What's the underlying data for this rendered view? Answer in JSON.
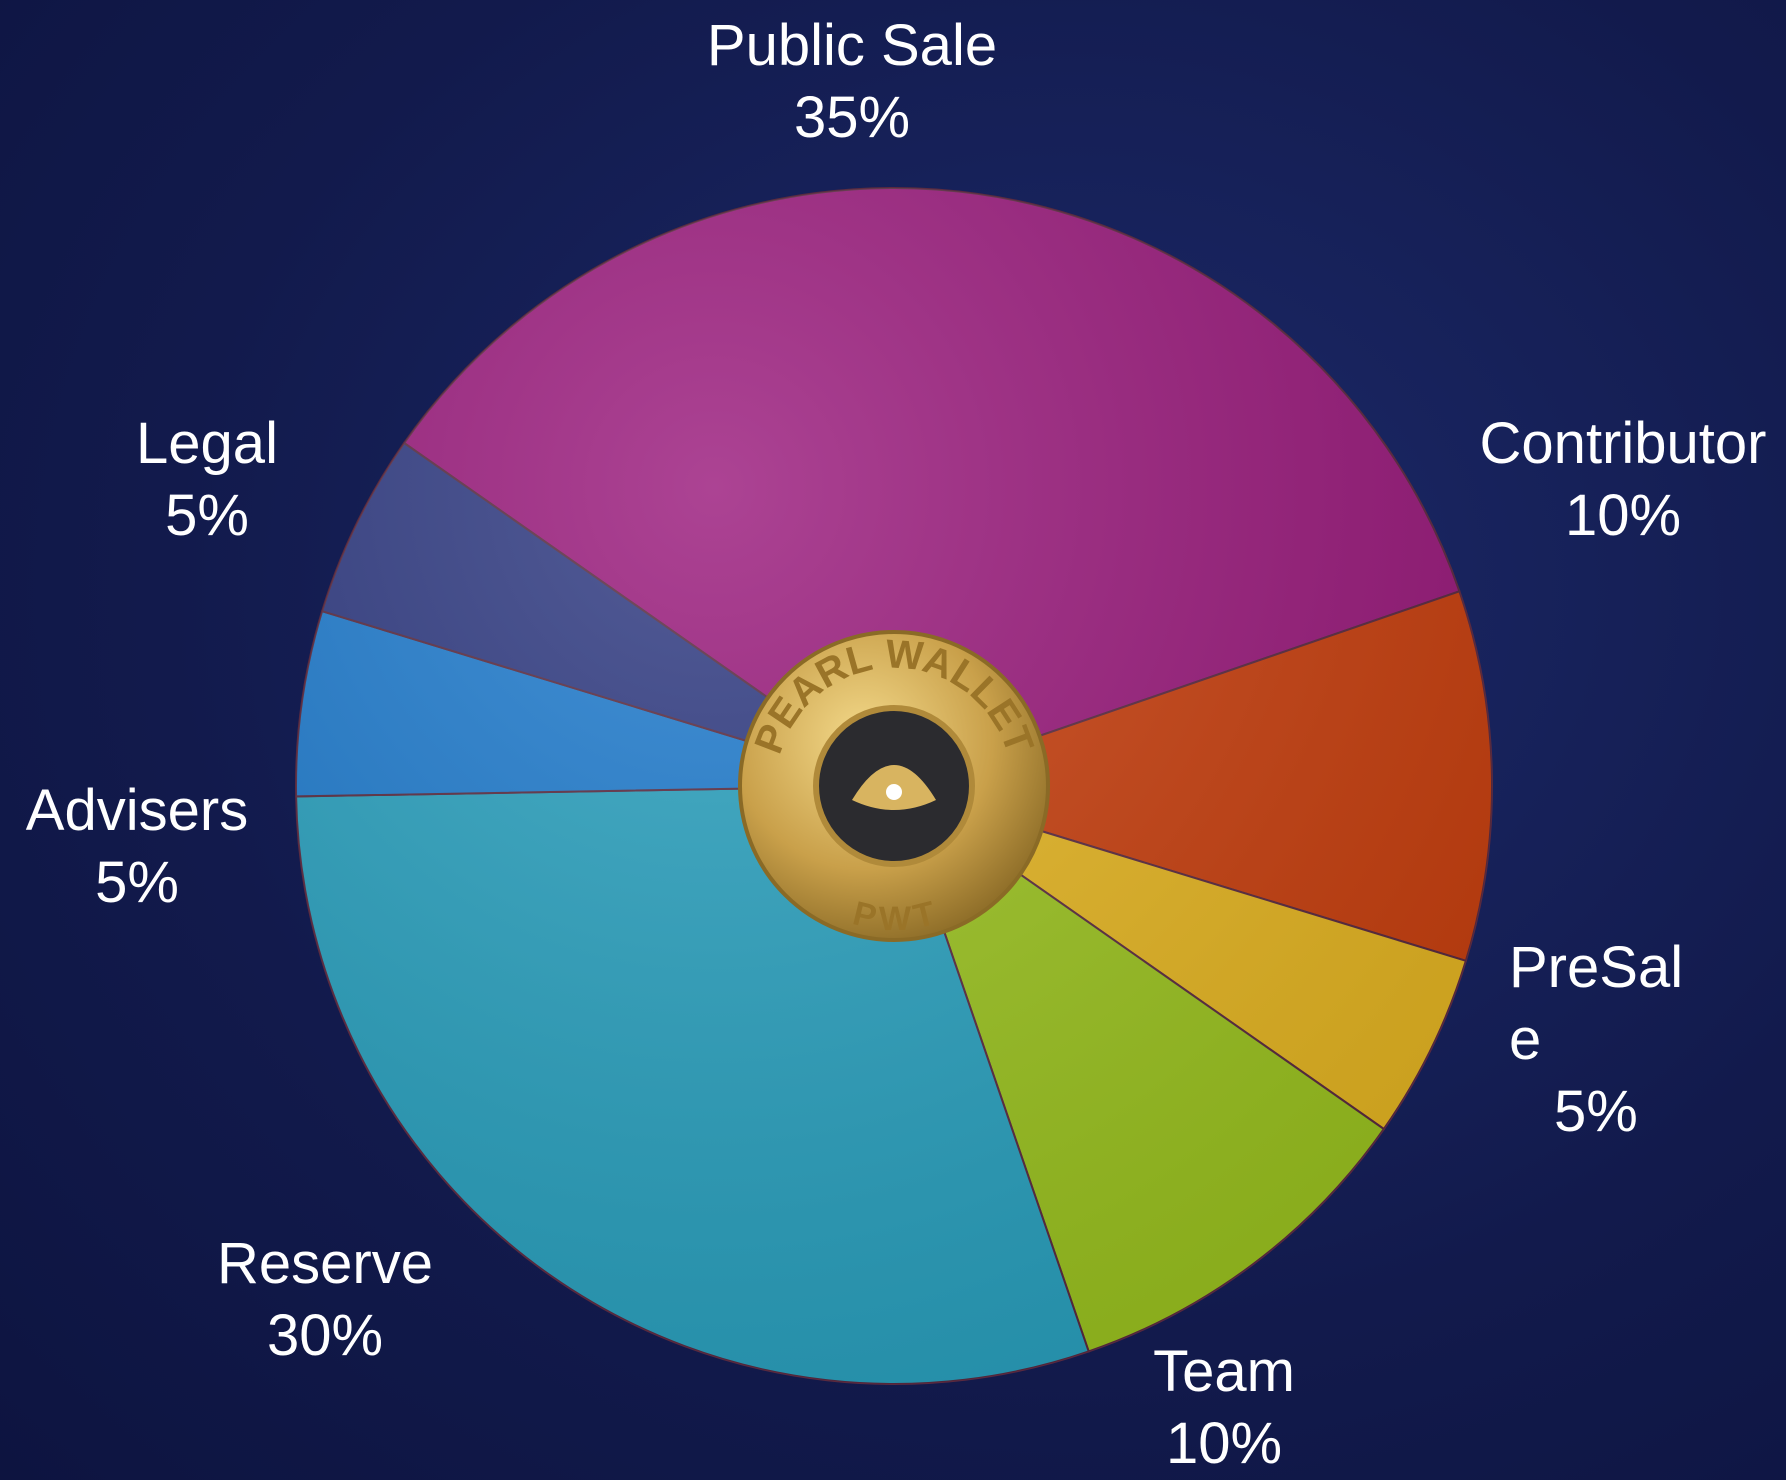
{
  "chart_data": {
    "type": "pie",
    "categories": [
      "Public Sale",
      "Contributor",
      "PreSale",
      "Team",
      "Reserve",
      "Advisers",
      "Legal"
    ],
    "values": [
      35,
      10,
      5,
      10,
      30,
      5,
      5
    ],
    "value_labels": [
      "35%",
      "10%",
      "5%",
      "10%",
      "30%",
      "5%",
      "5%"
    ],
    "colors": [
      "#9a1a7c",
      "#c9400f",
      "#e6b622",
      "#9cc420",
      "#2aa2c0",
      "#1f7ccf",
      "#2f3a82"
    ],
    "logo": {
      "text": "PEARL WALLET",
      "ticker": "PWT"
    }
  }
}
